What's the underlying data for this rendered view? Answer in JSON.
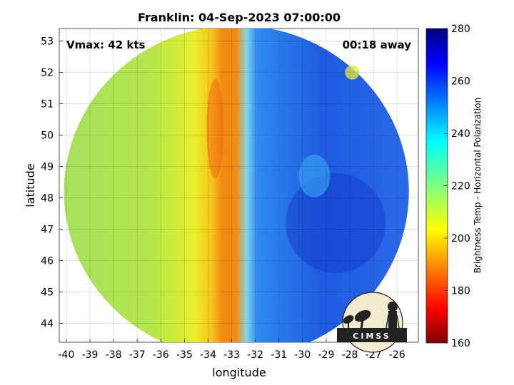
{
  "chart_data": {
    "type": "heatmap",
    "title": "Franklin: 04-Sep-2023 07:00:00",
    "xlabel": "longitude",
    "ylabel": "latitude",
    "xlim": [
      -40.3,
      -25.1
    ],
    "ylim": [
      43.4,
      53.4
    ],
    "xticks": [
      -40,
      -39,
      -38,
      -37,
      -36,
      -35,
      -34,
      -33,
      -32,
      -31,
      -30,
      -29,
      -28,
      -27,
      -26
    ],
    "yticks": [
      44,
      45,
      46,
      47,
      48,
      49,
      50,
      51,
      52,
      53
    ],
    "grid": true,
    "annotations": {
      "vmax": "Vmax: 42 kts",
      "time_offset": "00:18 away"
    },
    "colorbar": {
      "label": "Brightness Temp - Horizontal Polarization",
      "range": [
        160,
        280
      ],
      "ticks": [
        160,
        180,
        200,
        220,
        240,
        260,
        280
      ],
      "colormap": "jet"
    },
    "swath": {
      "center_lon": -32.8,
      "center_lat": 48.2,
      "radius_lon": 7.3,
      "radius_lat": 5.3
    },
    "features": [
      {
        "region": "west of -34 longitude",
        "brightness_temp_approx": 215
      },
      {
        "region": "warm band near -34 to -32.5 longitude, 48-53 latitude",
        "brightness_temp_approx": 192
      },
      {
        "region": "east of -32 longitude, storm cloud field",
        "brightness_temp_approx": 250
      },
      {
        "region": "storm center near -28.5, 47",
        "brightness_temp_approx": 258
      }
    ]
  },
  "logo": {
    "name": "cimss-logo",
    "text": "CIMSS"
  }
}
